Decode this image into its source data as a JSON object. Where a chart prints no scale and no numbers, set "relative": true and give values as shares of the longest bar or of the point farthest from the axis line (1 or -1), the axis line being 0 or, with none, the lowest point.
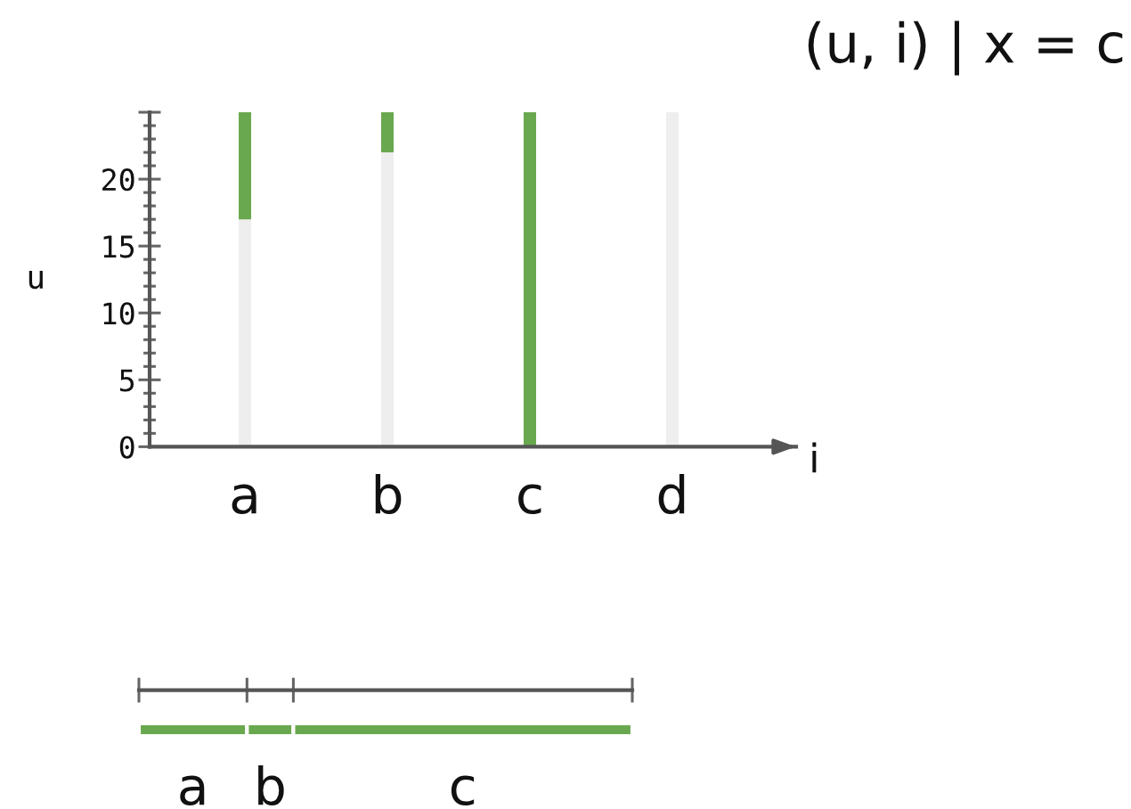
{
  "chart_data": [
    {
      "type": "bar",
      "stacked": true,
      "title": "(u, i) | x = c",
      "xlabel": "i",
      "ylabel": "u",
      "categories": [
        "a",
        "b",
        "c",
        "d"
      ],
      "series": [
        {
          "color": "#eeeeee",
          "values": [
            17,
            22,
            null,
            25
          ]
        },
        {
          "color": "#6aa84f",
          "values": [
            8,
            3,
            25,
            null
          ]
        }
      ],
      "ylim": [
        0,
        25
      ],
      "yticks": [
        0,
        {
          "value": 1,
          "label": null
        },
        {
          "value": 2,
          "label": null
        },
        {
          "value": 3,
          "label": null
        },
        {
          "value": 4,
          "label": null
        },
        5,
        {
          "value": 6,
          "label": null
        },
        {
          "value": 7,
          "label": null
        },
        {
          "value": 8,
          "label": null
        },
        {
          "value": 9,
          "label": null
        },
        10,
        {
          "value": 11,
          "label": null
        },
        {
          "value": 12,
          "label": null
        },
        {
          "value": 13,
          "label": null
        },
        {
          "value": 14,
          "label": null
        },
        15,
        {
          "value": 16,
          "label": null
        },
        {
          "value": 17,
          "label": null
        },
        {
          "value": 18,
          "label": null
        },
        {
          "value": 19,
          "label": null
        },
        20,
        {
          "value": 21,
          "label": null
        },
        {
          "value": 22,
          "label": null
        },
        {
          "value": 23,
          "label": null
        },
        {
          "value": 24,
          "label": null
        },
        {
          "value": 25,
          "label": null
        }
      ]
    },
    {
      "type": "bar",
      "orientation": "horizontal",
      "stacked": true,
      "relative": true,
      "categories": [
        null
      ],
      "series": [
        {
          "name": "a",
          "color": "#6aa84f",
          "values": [
            0.219
          ]
        },
        {
          "name": "b",
          "color": "#6aa84f",
          "values": [
            0.094
          ]
        },
        {
          "name": "c",
          "color": "#6aa84f",
          "values": [
            0.687
          ]
        }
      ]
    }
  ]
}
